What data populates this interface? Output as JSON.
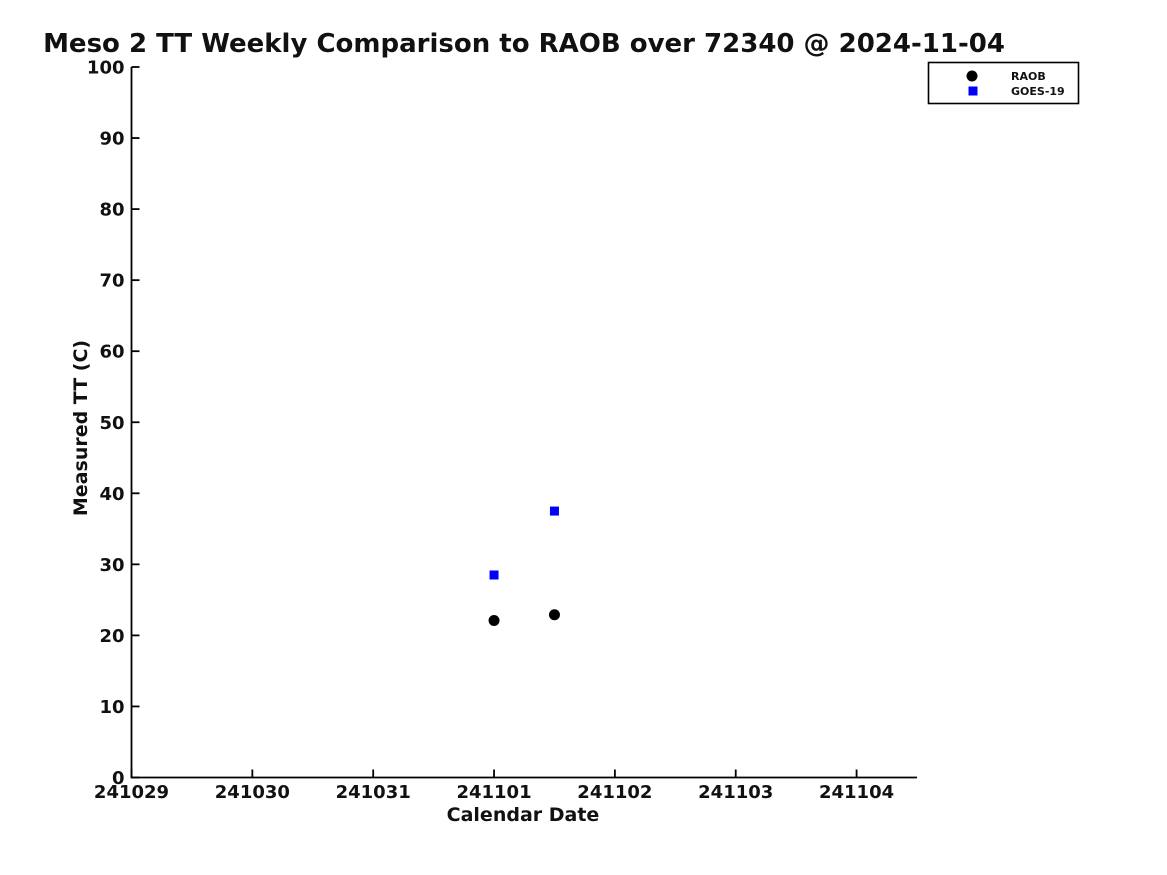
{
  "chart_data": {
    "type": "scatter",
    "title": "Meso 2 TT Weekly Comparison to RAOB over 72340 @ 2024-11-04",
    "xlabel": "Calendar Date",
    "ylabel": "Measured TT (C)",
    "grid": false,
    "axis_color": "#000000",
    "background": "#ffffff",
    "ylim": [
      0,
      100
    ],
    "y_ticks": [
      0,
      10,
      20,
      30,
      40,
      50,
      60,
      70,
      80,
      90,
      100
    ],
    "xlim_days": [
      0,
      6.5
    ],
    "x_ticks": [
      {
        "day": 0,
        "label": "241029"
      },
      {
        "day": 1,
        "label": "241030"
      },
      {
        "day": 2,
        "label": "241031"
      },
      {
        "day": 3,
        "label": "241101"
      },
      {
        "day": 4,
        "label": "241102"
      },
      {
        "day": 5,
        "label": "241103"
      },
      {
        "day": 6,
        "label": "241104"
      }
    ],
    "legend": {
      "position": "top-right",
      "entries": [
        {
          "label": "RAOB",
          "marker": "circle",
          "color": "#000000"
        },
        {
          "label": "GOES-19",
          "marker": "square",
          "color": "#0000ff"
        }
      ]
    },
    "series": [
      {
        "name": "RAOB",
        "marker": "circle",
        "color": "#000000",
        "points": [
          {
            "x_day": 3.0,
            "y": 22.1
          },
          {
            "x_day": 3.5,
            "y": 22.9
          }
        ]
      },
      {
        "name": "GOES-19",
        "marker": "square",
        "color": "#0000ff",
        "points": [
          {
            "x_day": 3.0,
            "y": 28.5
          },
          {
            "x_day": 3.5,
            "y": 37.5
          }
        ]
      }
    ]
  }
}
